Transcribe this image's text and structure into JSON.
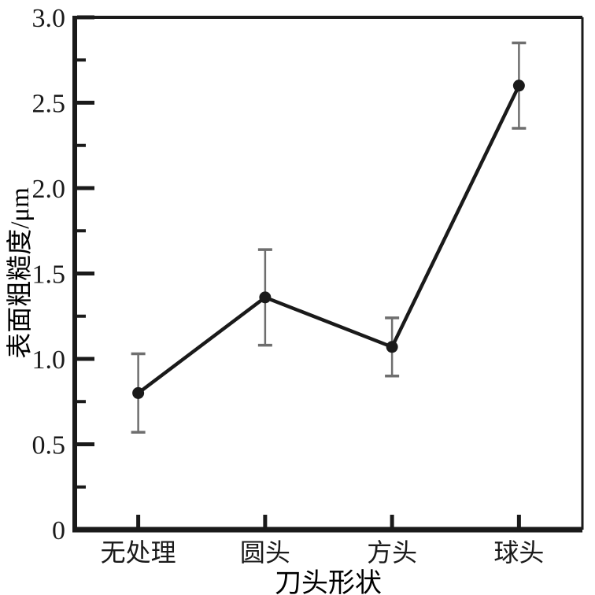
{
  "chart_data": {
    "type": "line",
    "title": "",
    "xlabel": "刀头形状",
    "ylabel": "表面粗糙度/μm",
    "categories": [
      "无处理",
      "圆头",
      "方头",
      "球头"
    ],
    "series": [
      {
        "name": "表面粗糙度",
        "values": [
          0.8,
          1.36,
          1.07,
          2.6
        ],
        "errors": [
          0.23,
          0.28,
          0.17,
          0.25
        ]
      }
    ],
    "ylim": [
      0,
      3.0
    ],
    "y_major_step": 0.5,
    "y_minor_step": 0.25,
    "y_tick_labels": [
      "0",
      "0.5",
      "1.0",
      "1.5",
      "2.0",
      "2.5",
      "3.0"
    ],
    "grid": false,
    "legend": "none",
    "marker": "filled-circle",
    "error_bars": true,
    "colors": {
      "line": "#1a1a1a",
      "marker": "#1a1a1a",
      "error_bar": "#6e6e6e",
      "axis": "#1a1a1a",
      "text": "#1a1a1a",
      "background": "#ffffff"
    }
  }
}
